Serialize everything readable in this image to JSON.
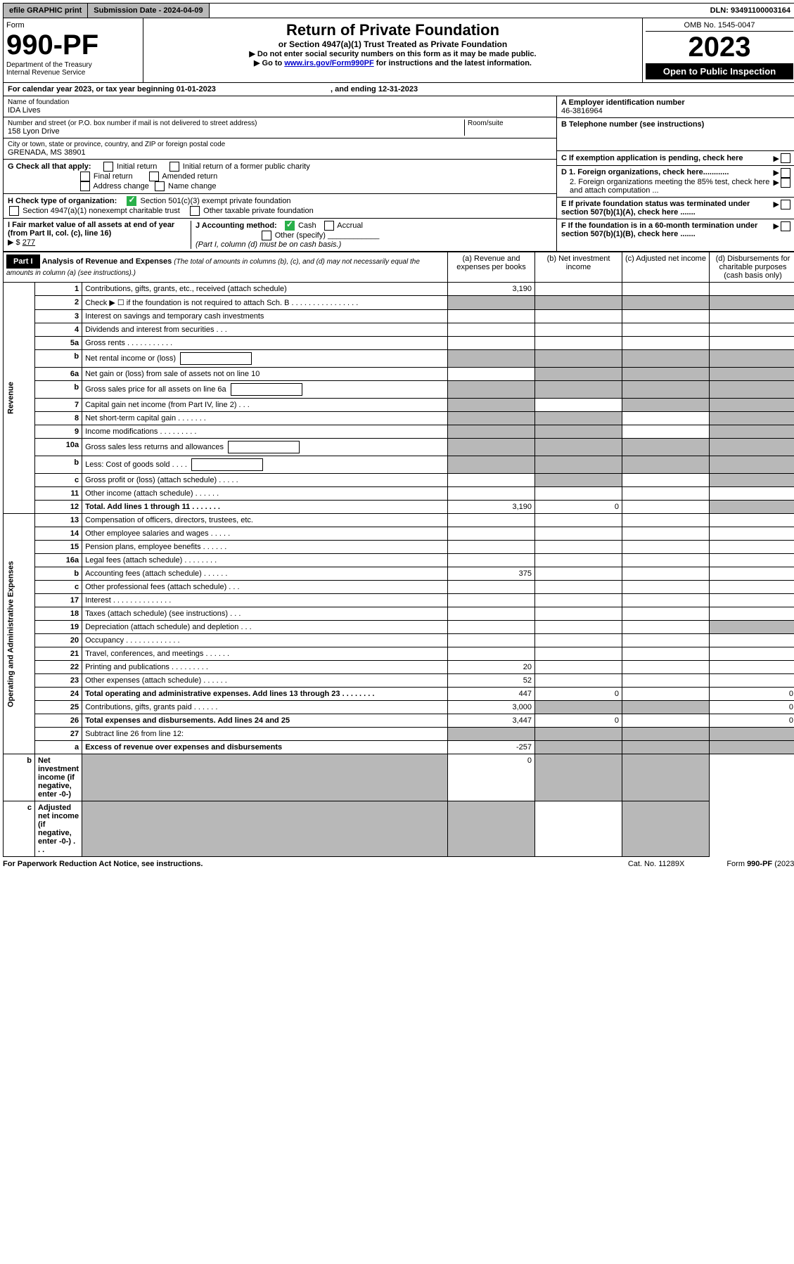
{
  "topbar": {
    "efile": "efile GRAPHIC print",
    "submission": "Submission Date - 2024-04-09",
    "dln": "DLN: 93491100003164"
  },
  "header": {
    "form_label": "Form",
    "form_no": "990-PF",
    "dept": "Department of the Treasury",
    "irs": "Internal Revenue Service",
    "title": "Return of Private Foundation",
    "subtitle": "or Section 4947(a)(1) Trust Treated as Private Foundation",
    "note1": "▶ Do not enter social security numbers on this form as it may be made public.",
    "note2_pre": "▶ Go to ",
    "note2_link": "www.irs.gov/Form990PF",
    "note2_post": " for instructions and the latest information.",
    "omb": "OMB No. 1545-0047",
    "year": "2023",
    "open": "Open to Public Inspection"
  },
  "cal": {
    "text_pre": "For calendar year 2023, or tax year beginning ",
    "begin": "01-01-2023",
    "text_mid": ", and ending ",
    "end": "12-31-2023"
  },
  "id": {
    "name_label": "Name of foundation",
    "name": "IDA Lives",
    "addr_label": "Number and street (or P.O. box number if mail is not delivered to street address)",
    "addr": "158 Lyon Drive",
    "room_label": "Room/suite",
    "city_label": "City or town, state or province, country, and ZIP or foreign postal code",
    "city": "GRENADA, MS  38901",
    "a_label": "A Employer identification number",
    "a_val": "46-3816964",
    "b_label": "B Telephone number (see instructions)",
    "c_label": "C If exemption application is pending, check here",
    "d1": "D 1. Foreign organizations, check here............",
    "d2": "2. Foreign organizations meeting the 85% test, check here and attach computation ...",
    "e_label": "E  If private foundation status was terminated under section 507(b)(1)(A), check here .......",
    "f_label": "F  If the foundation is in a 60-month termination under section 507(b)(1)(B), check here .......",
    "g_label": "G Check all that apply:",
    "g_opts": [
      "Initial return",
      "Initial return of a former public charity",
      "Final return",
      "Amended return",
      "Address change",
      "Name change"
    ],
    "h_label": "H Check type of organization:",
    "h1": "Section 501(c)(3) exempt private foundation",
    "h2": "Section 4947(a)(1) nonexempt charitable trust",
    "h3": "Other taxable private foundation",
    "i_label": "I Fair market value of all assets at end of year (from Part II, col. (c), line 16)",
    "i_val": "277",
    "j_label": "J Accounting method:",
    "j_cash": "Cash",
    "j_acc": "Accrual",
    "j_other": "Other (specify)",
    "j_note": "(Part I, column (d) must be on cash basis.)"
  },
  "part1": {
    "label": "Part I",
    "title": "Analysis of Revenue and Expenses",
    "note": "(The total of amounts in columns (b), (c), and (d) may not necessarily equal the amounts in column (a) (see instructions).)",
    "col_a": "(a)   Revenue and expenses per books",
    "col_b": "(b)   Net investment income",
    "col_c": "(c)   Adjusted net income",
    "col_d": "(d)   Disbursements for charitable purposes (cash basis only)"
  },
  "sections": {
    "revenue": "Revenue",
    "expenses": "Operating and Administrative Expenses"
  },
  "lines": [
    {
      "n": "1",
      "t": "Contributions, gifts, grants, etc., received (attach schedule)",
      "a": "3,190",
      "gray_bcd": false
    },
    {
      "n": "2",
      "t": "Check ▶ ☐ if the foundation is not required to attach Sch. B   .  .  .  .  .  .  .  .  .  .  .  .  .  .  .  .",
      "all_gray": true
    },
    {
      "n": "3",
      "t": "Interest on savings and temporary cash investments"
    },
    {
      "n": "4",
      "t": "Dividends and interest from securities   .   .   ."
    },
    {
      "n": "5a",
      "t": "Gross rents    .   .   .   .   .   .   .   .   .   .   ."
    },
    {
      "n": "b",
      "t": "Net rental income or (loss)",
      "inline_box": true,
      "all_gray": true
    },
    {
      "n": "6a",
      "t": "Net gain or (loss) from sale of assets not on line 10",
      "gray_bcd": true
    },
    {
      "n": "b",
      "t": "Gross sales price for all assets on line 6a",
      "inline_box": true,
      "all_gray": true
    },
    {
      "n": "7",
      "t": "Capital gain net income (from Part IV, line 2)   .   .   .",
      "gray_a": true,
      "gray_cd": true
    },
    {
      "n": "8",
      "t": "Net short-term capital gain   .   .   .   .   .   .   .",
      "gray_ab": true,
      "gray_d": true
    },
    {
      "n": "9",
      "t": "Income modifications  .   .   .   .   .   .   .   .   .",
      "gray_ab": true,
      "gray_d": true
    },
    {
      "n": "10a",
      "t": "Gross sales less returns and allowances",
      "inline_box": true,
      "all_gray": true
    },
    {
      "n": "b",
      "t": "Less: Cost of goods sold   .   .   .   .",
      "inline_box": true,
      "all_gray": true
    },
    {
      "n": "c",
      "t": "Gross profit or (loss) (attach schedule)   .   .   .   .   .",
      "gray_b": true,
      "gray_d": true
    },
    {
      "n": "11",
      "t": "Other income (attach schedule)    .   .   .   .   .   ."
    },
    {
      "n": "12",
      "t": "Total. Add lines 1 through 11    .   .   .   .   .   .   .",
      "bold": true,
      "a": "3,190",
      "b": "0",
      "gray_d": true
    },
    {
      "n": "13",
      "t": "Compensation of officers, directors, trustees, etc."
    },
    {
      "n": "14",
      "t": "Other employee salaries and wages   .   .   .   .   ."
    },
    {
      "n": "15",
      "t": "Pension plans, employee benefits   .   .   .   .   .   ."
    },
    {
      "n": "16a",
      "t": "Legal fees (attach schedule)  .   .   .   .   .   .   .   ."
    },
    {
      "n": "b",
      "t": "Accounting fees (attach schedule)  .   .   .   .   .   .",
      "a": "375"
    },
    {
      "n": "c",
      "t": "Other professional fees (attach schedule)    .   .   ."
    },
    {
      "n": "17",
      "t": "Interest  .   .   .   .   .   .   .   .   .   .   .   .   .   ."
    },
    {
      "n": "18",
      "t": "Taxes (attach schedule) (see instructions)    .   .   ."
    },
    {
      "n": "19",
      "t": "Depreciation (attach schedule) and depletion   .   .   .",
      "gray_d": true
    },
    {
      "n": "20",
      "t": "Occupancy  .   .   .   .   .   .   .   .   .   .   .   .   ."
    },
    {
      "n": "21",
      "t": "Travel, conferences, and meetings  .   .   .   .   .   ."
    },
    {
      "n": "22",
      "t": "Printing and publications  .   .   .   .   .   .   .   .   .",
      "a": "20"
    },
    {
      "n": "23",
      "t": "Other expenses (attach schedule)  .   .   .   .   .   .",
      "a": "52"
    },
    {
      "n": "24",
      "t": "Total operating and administrative expenses. Add lines 13 through 23   .   .   .   .   .   .   .   .",
      "bold": true,
      "a": "447",
      "b": "0",
      "d": "0"
    },
    {
      "n": "25",
      "t": "Contributions, gifts, grants paid    .   .   .   .   .   .",
      "a": "3,000",
      "gray_bc": true,
      "d": "0"
    },
    {
      "n": "26",
      "t": "Total expenses and disbursements. Add lines 24 and 25",
      "bold": true,
      "a": "3,447",
      "b": "0",
      "d": "0"
    },
    {
      "n": "27",
      "t": "Subtract line 26 from line 12:",
      "all_gray": true
    },
    {
      "n": "a",
      "t": "Excess of revenue over expenses and disbursements",
      "bold": true,
      "a": "-257",
      "gray_bcd": true
    },
    {
      "n": "b",
      "t": "Net investment income (if negative, enter -0-)",
      "bold": true,
      "gray_a": true,
      "b": "0",
      "gray_cd": true
    },
    {
      "n": "c",
      "t": "Adjusted net income (if negative, enter -0-)   .   .   .",
      "bold": true,
      "gray_ab": true,
      "gray_d": true
    }
  ],
  "footer": {
    "left": "For Paperwork Reduction Act Notice, see instructions.",
    "mid": "Cat. No. 11289X",
    "right": "Form 990-PF (2023)"
  }
}
